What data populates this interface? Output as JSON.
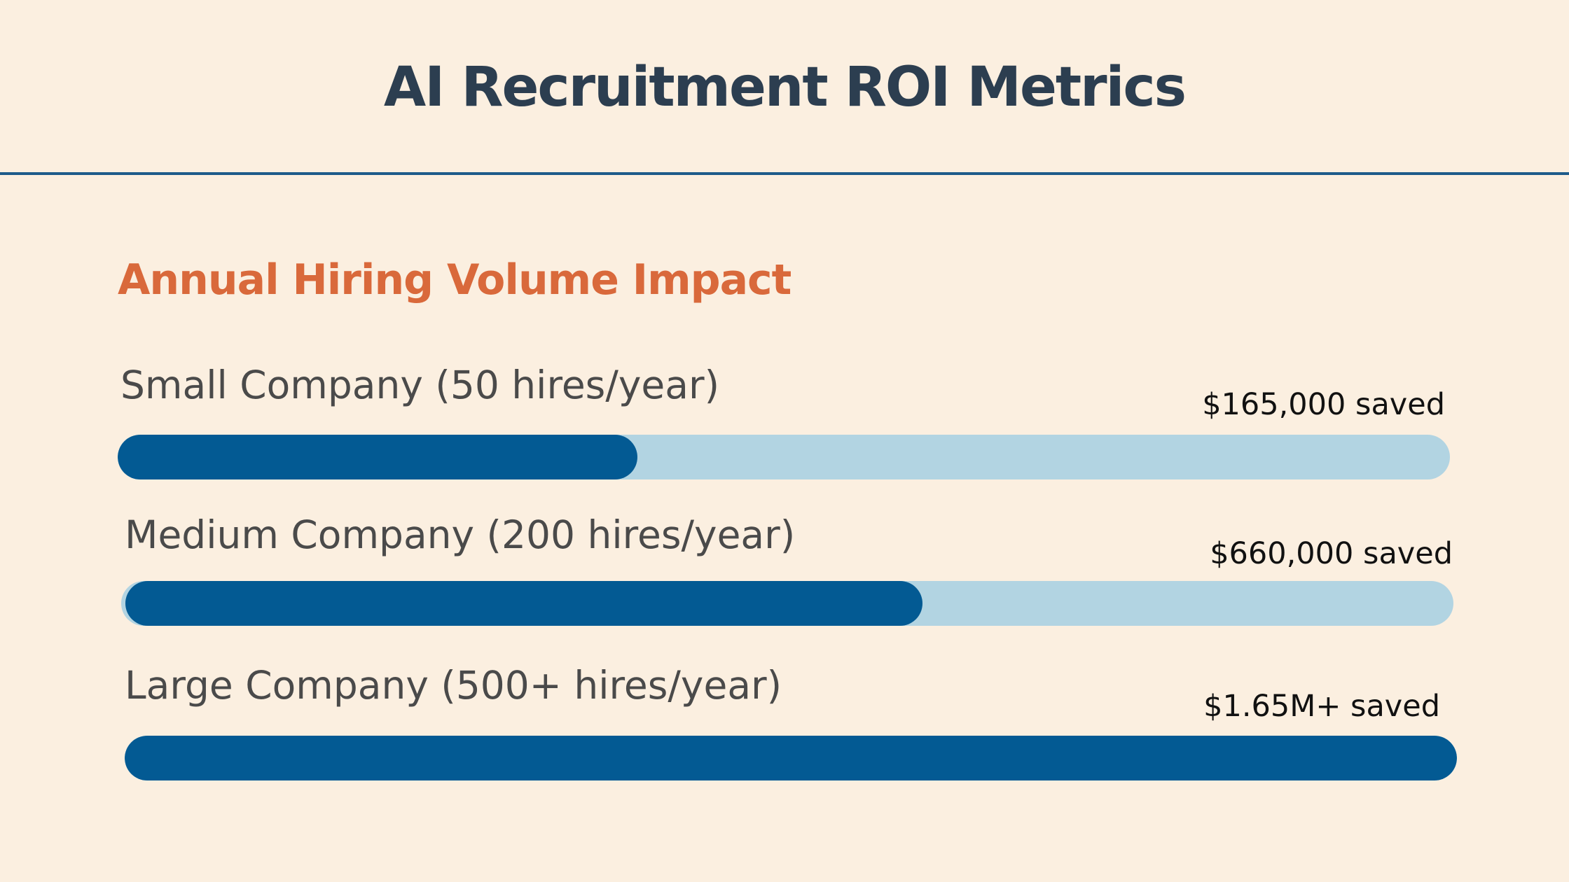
{
  "title": "AI Recruitment ROI Metrics",
  "subtitle": "Annual Hiring Volume Impact",
  "colors": {
    "background": "#fbefe0",
    "title": "#2c3e50",
    "accent": "#d9693b",
    "divider": "#1e5b8a",
    "bar_fill": "#035a93",
    "bar_track": "#b2d4e2"
  },
  "chart_data": {
    "type": "bar",
    "orientation": "horizontal",
    "title": "Annual Hiring Volume Impact",
    "categories": [
      "Small Company (50 hires/year)",
      "Medium Company (200 hires/year)",
      "Large Company (500+ hires/year)"
    ],
    "value_labels": [
      "$165,000 saved",
      "$660,000 saved",
      "$1.65M+ saved"
    ],
    "values": [
      0.39,
      0.6,
      1.0
    ],
    "value_unit": "fraction of bar filled",
    "xlim": [
      0,
      1
    ],
    "grid": false,
    "legend": "none"
  }
}
